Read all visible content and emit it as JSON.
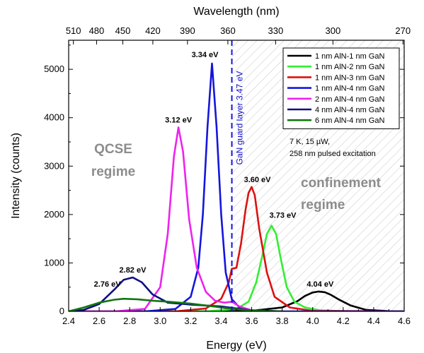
{
  "chart_data": {
    "type": "line",
    "xlabel": "Energy (eV)",
    "ylabel": "Intensity (counts)",
    "top_xlabel": "Wavelength (nm)",
    "xlim": [
      2.4,
      4.6
    ],
    "ylim": [
      0,
      5600
    ],
    "x_ticks": [
      2.4,
      2.6,
      2.8,
      3.0,
      3.2,
      3.4,
      3.6,
      3.8,
      4.0,
      4.2,
      4.4,
      4.6
    ],
    "x_tick_labels": [
      "2.4",
      "2.6",
      "2.8",
      "3.0",
      "3.2",
      "3.4",
      "3.6",
      "3.8",
      "4.0",
      "4.2",
      "4.4",
      "4.6"
    ],
    "y_ticks": [
      0,
      1000,
      2000,
      3000,
      4000,
      5000
    ],
    "y_tick_labels": [
      "0",
      "1000",
      "2000",
      "3000",
      "4000",
      "5000"
    ],
    "top_ticks_nm": [
      510,
      480,
      450,
      420,
      390,
      360,
      330,
      300,
      270
    ],
    "top_tick_labels": [
      "510",
      "480",
      "450",
      "420",
      "390",
      "360",
      "330",
      "300",
      "270"
    ],
    "legend_position": "top-right",
    "grid": false,
    "series": [
      {
        "name": "1 nm AlN-1 nm GaN",
        "color": "#000000",
        "x": [
          2.4,
          3.3,
          3.6,
          3.8,
          3.9,
          3.95,
          4.0,
          4.04,
          4.08,
          4.12,
          4.18,
          4.25,
          4.35,
          4.5,
          4.6
        ],
        "y": [
          0,
          0,
          10,
          80,
          210,
          320,
          390,
          410,
          395,
          340,
          230,
          120,
          30,
          5,
          0
        ]
      },
      {
        "name": "1 nm AlN-2 nm GaN",
        "color": "#33ee33",
        "x": [
          2.4,
          3.3,
          3.5,
          3.58,
          3.63,
          3.67,
          3.7,
          3.73,
          3.76,
          3.79,
          3.83,
          3.88,
          3.95,
          4.05,
          4.2,
          4.6
        ],
        "y": [
          0,
          0,
          50,
          200,
          600,
          1150,
          1600,
          1770,
          1600,
          1100,
          500,
          200,
          80,
          20,
          5,
          0
        ]
      },
      {
        "name": "1 nm AlN-3 nm GaN",
        "color": "#dd1111",
        "x": [
          2.4,
          3.1,
          3.3,
          3.4,
          3.45,
          3.47,
          3.5,
          3.53,
          3.56,
          3.58,
          3.6,
          3.62,
          3.65,
          3.7,
          3.75,
          3.85,
          4.0,
          4.6
        ],
        "y": [
          0,
          0,
          60,
          260,
          600,
          880,
          900,
          1400,
          2100,
          2450,
          2570,
          2400,
          1700,
          800,
          300,
          80,
          10,
          0
        ]
      },
      {
        "name": "1 nm AlN-4 nm GaN",
        "color": "#1515dd",
        "x": [
          2.4,
          2.9,
          3.1,
          3.2,
          3.25,
          3.28,
          3.31,
          3.34,
          3.37,
          3.4,
          3.43,
          3.47,
          3.52,
          3.6,
          3.8,
          4.6
        ],
        "y": [
          0,
          0,
          50,
          300,
          900,
          2000,
          3800,
          5120,
          3800,
          2000,
          800,
          250,
          80,
          20,
          0,
          0
        ]
      },
      {
        "name": "2 nm AlN-4 nm GaN",
        "color": "#ee22ee",
        "x": [
          2.4,
          2.7,
          2.9,
          3.0,
          3.05,
          3.09,
          3.12,
          3.15,
          3.19,
          3.24,
          3.3,
          3.36,
          3.42,
          3.47,
          3.52,
          3.6,
          3.8
        ],
        "y": [
          0,
          0,
          50,
          500,
          1600,
          3200,
          3800,
          3300,
          1900,
          900,
          400,
          220,
          180,
          200,
          100,
          20,
          0
        ]
      },
      {
        "name": "4 nm AlN-4 nm GaN",
        "color": "#101080",
        "x": [
          2.4,
          2.5,
          2.6,
          2.7,
          2.76,
          2.82,
          2.88,
          2.95,
          3.05,
          3.2,
          3.4,
          3.5,
          3.6,
          3.8
        ],
        "y": [
          0,
          30,
          150,
          450,
          650,
          700,
          600,
          350,
          180,
          140,
          100,
          60,
          20,
          0
        ]
      },
      {
        "name": "6 nm AlN-4 nm GaN",
        "color": "#117711",
        "x": [
          2.4,
          2.5,
          2.6,
          2.7,
          2.76,
          2.85,
          2.95,
          3.05,
          3.2,
          3.35,
          3.45,
          3.55,
          3.65,
          3.8
        ],
        "y": [
          0,
          80,
          180,
          240,
          260,
          250,
          220,
          200,
          160,
          100,
          60,
          30,
          10,
          0
        ]
      }
    ],
    "peak_labels": [
      {
        "text": "3.34 eV",
        "x": 3.34,
        "y": 5120
      },
      {
        "text": "3.12 eV",
        "x": 3.12,
        "y": 3800
      },
      {
        "text": "3.60 eV",
        "x": 3.6,
        "y": 2570
      },
      {
        "text": "3.73 eV",
        "x": 3.73,
        "y": 1770
      },
      {
        "text": "2.82 eV",
        "x": 2.82,
        "y": 700
      },
      {
        "text": "2.76 eV",
        "x": 2.7,
        "y": 260
      },
      {
        "text": "4.04 eV",
        "x": 4.04,
        "y": 410
      }
    ],
    "guard_line": {
      "x": 3.47,
      "label": "GaN guard layer 3.47 eV",
      "color": "#1515dd"
    },
    "region_labels": {
      "qcse": [
        "QCSE",
        "regime"
      ],
      "confinement": [
        "confinement",
        "regime"
      ]
    },
    "conditions": [
      "7 K, 15 µW,",
      "258 nm pulsed excitation"
    ]
  }
}
